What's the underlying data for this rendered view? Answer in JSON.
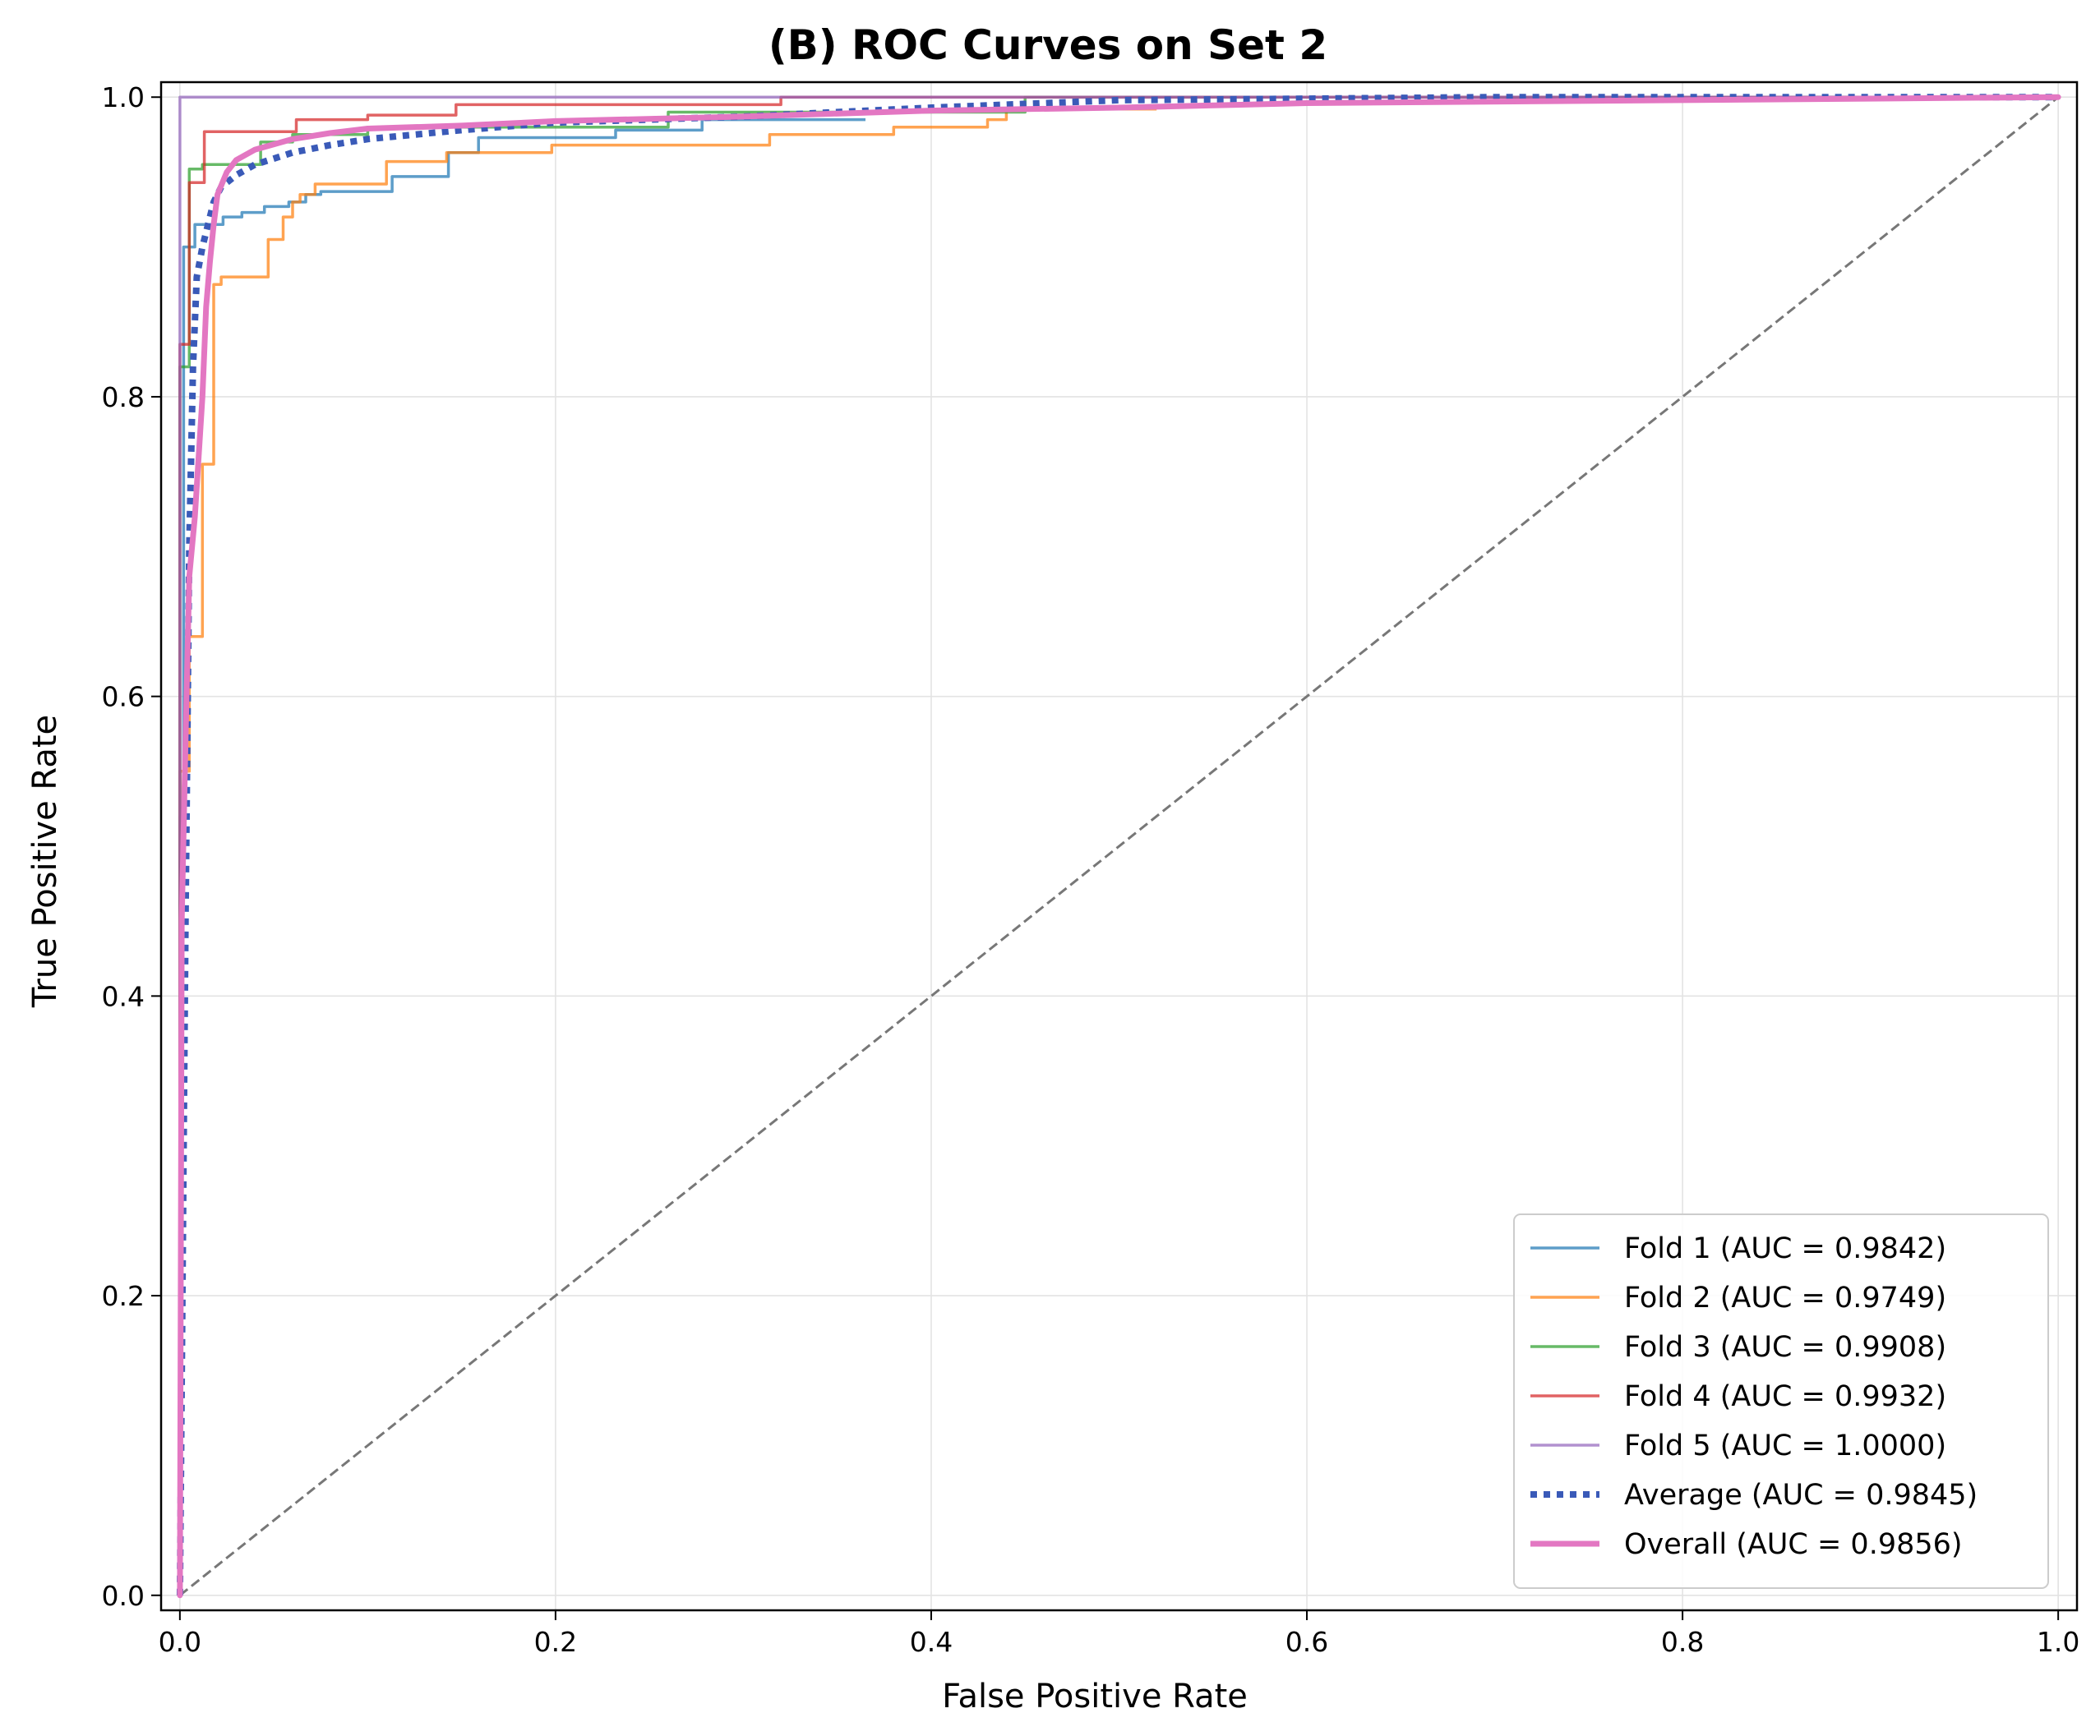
{
  "chart_data": {
    "type": "line",
    "title": "(B) ROC Curves on Set 2",
    "xlabel": "False Positive Rate",
    "ylabel": "True Positive Rate",
    "xlim": [
      -0.01,
      1.01
    ],
    "ylim": [
      -0.01,
      1.01
    ],
    "xticks": [
      "0.0",
      "0.2",
      "0.4",
      "0.6",
      "0.8",
      "1.0"
    ],
    "yticks": [
      "0.0",
      "0.2",
      "0.4",
      "0.6",
      "0.8",
      "1.0"
    ],
    "grid": true,
    "legend_position": "lower-right",
    "series": [
      {
        "name": "Fold 1 (AUC = 0.9842)",
        "color": "#1f77b4",
        "style": "solid",
        "x": [
          0,
          0,
          0.002,
          0.002,
          0.008,
          0.008,
          0.012,
          0.012,
          0.023,
          0.023,
          0.033,
          0.033,
          0.045,
          0.045,
          0.058,
          0.058,
          0.067,
          0.067,
          0.075,
          0.075,
          0.113,
          0.113,
          0.143,
          0.143,
          0.159,
          0.159,
          0.232,
          0.232,
          0.278,
          0.278,
          0.365
        ],
        "y": [
          0,
          0.52,
          0.52,
          0.9,
          0.9,
          0.915,
          0.915,
          0.915,
          0.915,
          0.92,
          0.92,
          0.923,
          0.923,
          0.927,
          0.927,
          0.93,
          0.93,
          0.935,
          0.935,
          0.937,
          0.937,
          0.947,
          0.947,
          0.963,
          0.963,
          0.973,
          0.973,
          0.978,
          0.978,
          0.985,
          0.985
        ]
      },
      {
        "name": "Fold 2 (AUC = 0.9749)",
        "color": "#ff7f0e",
        "style": "solid",
        "x": [
          0,
          0,
          0.005,
          0.005,
          0.012,
          0.012,
          0.018,
          0.018,
          0.022,
          0.022,
          0.047,
          0.047,
          0.055,
          0.055,
          0.06,
          0.06,
          0.064,
          0.064,
          0.072,
          0.072,
          0.11,
          0.11,
          0.142,
          0.142,
          0.198,
          0.198,
          0.314,
          0.314,
          0.38,
          0.38,
          0.43,
          0.43,
          0.44,
          0.44,
          0.52
        ],
        "y": [
          0,
          0.55,
          0.55,
          0.64,
          0.64,
          0.755,
          0.755,
          0.875,
          0.875,
          0.88,
          0.88,
          0.905,
          0.905,
          0.92,
          0.92,
          0.93,
          0.93,
          0.935,
          0.935,
          0.942,
          0.942,
          0.957,
          0.957,
          0.963,
          0.963,
          0.968,
          0.968,
          0.975,
          0.975,
          0.98,
          0.98,
          0.985,
          0.985,
          0.992,
          0.992
        ]
      },
      {
        "name": "Fold 3 (AUC = 0.9908)",
        "color": "#2ca02c",
        "style": "solid",
        "x": [
          0,
          0,
          0.005,
          0.005,
          0.012,
          0.012,
          0.028,
          0.028,
          0.043,
          0.043,
          0.06,
          0.06,
          0.1,
          0.1,
          0.26,
          0.26,
          0.45,
          0.45,
          1.0
        ],
        "y": [
          0,
          0.82,
          0.82,
          0.952,
          0.952,
          0.955,
          0.955,
          0.955,
          0.955,
          0.97,
          0.97,
          0.975,
          0.975,
          0.98,
          0.98,
          0.99,
          0.99,
          1.0,
          1.0
        ]
      },
      {
        "name": "Fold 4 (AUC = 0.9932)",
        "color": "#d62728",
        "style": "solid",
        "x": [
          0,
          0,
          0.005,
          0.005,
          0.013,
          0.013,
          0.062,
          0.062,
          0.1,
          0.1,
          0.147,
          0.147,
          0.32,
          0.32,
          1.0
        ],
        "y": [
          0,
          0.835,
          0.835,
          0.943,
          0.943,
          0.977,
          0.977,
          0.985,
          0.985,
          0.988,
          0.988,
          0.995,
          0.995,
          1.0,
          1.0
        ]
      },
      {
        "name": "Fold 5 (AUC = 1.0000)",
        "color": "#9467bd",
        "style": "solid",
        "x": [
          0,
          0,
          1.0
        ],
        "y": [
          0,
          1.0,
          1.0
        ]
      },
      {
        "name": "Average (AUC = 0.9845)",
        "color": "#3a5ab8",
        "style": "dotted",
        "x": [
          0,
          0.003,
          0.005,
          0.007,
          0.009,
          0.012,
          0.015,
          0.018,
          0.022,
          0.03,
          0.04,
          0.06,
          0.08,
          0.1,
          0.15,
          0.2,
          0.3,
          0.4,
          0.5,
          0.6,
          0.7,
          0.8,
          0.9,
          1.0
        ],
        "y": [
          0,
          0.45,
          0.7,
          0.82,
          0.88,
          0.9,
          0.915,
          0.93,
          0.94,
          0.948,
          0.955,
          0.963,
          0.968,
          0.972,
          0.978,
          0.983,
          0.987,
          0.993,
          0.998,
          0.999,
          1.0,
          1.0,
          1.0,
          1.0
        ]
      },
      {
        "name": "Overall (AUC = 0.9856)",
        "color": "#e377c2",
        "style": "solid-thick",
        "x": [
          0,
          0.001,
          0.003,
          0.005,
          0.008,
          0.01,
          0.012,
          0.014,
          0.016,
          0.018,
          0.02,
          0.025,
          0.03,
          0.04,
          0.06,
          0.08,
          0.1,
          0.15,
          0.2,
          0.3,
          0.4,
          0.5,
          0.6,
          0.8,
          1.0
        ],
        "y": [
          0,
          0.45,
          0.57,
          0.68,
          0.72,
          0.76,
          0.8,
          0.86,
          0.89,
          0.915,
          0.935,
          0.95,
          0.958,
          0.965,
          0.972,
          0.976,
          0.979,
          0.981,
          0.984,
          0.987,
          0.991,
          0.993,
          0.996,
          0.998,
          1.0
        ]
      }
    ],
    "reference_line": {
      "x": [
        0,
        1
      ],
      "y": [
        0,
        1
      ],
      "color": "#777777",
      "style": "dashed"
    }
  }
}
